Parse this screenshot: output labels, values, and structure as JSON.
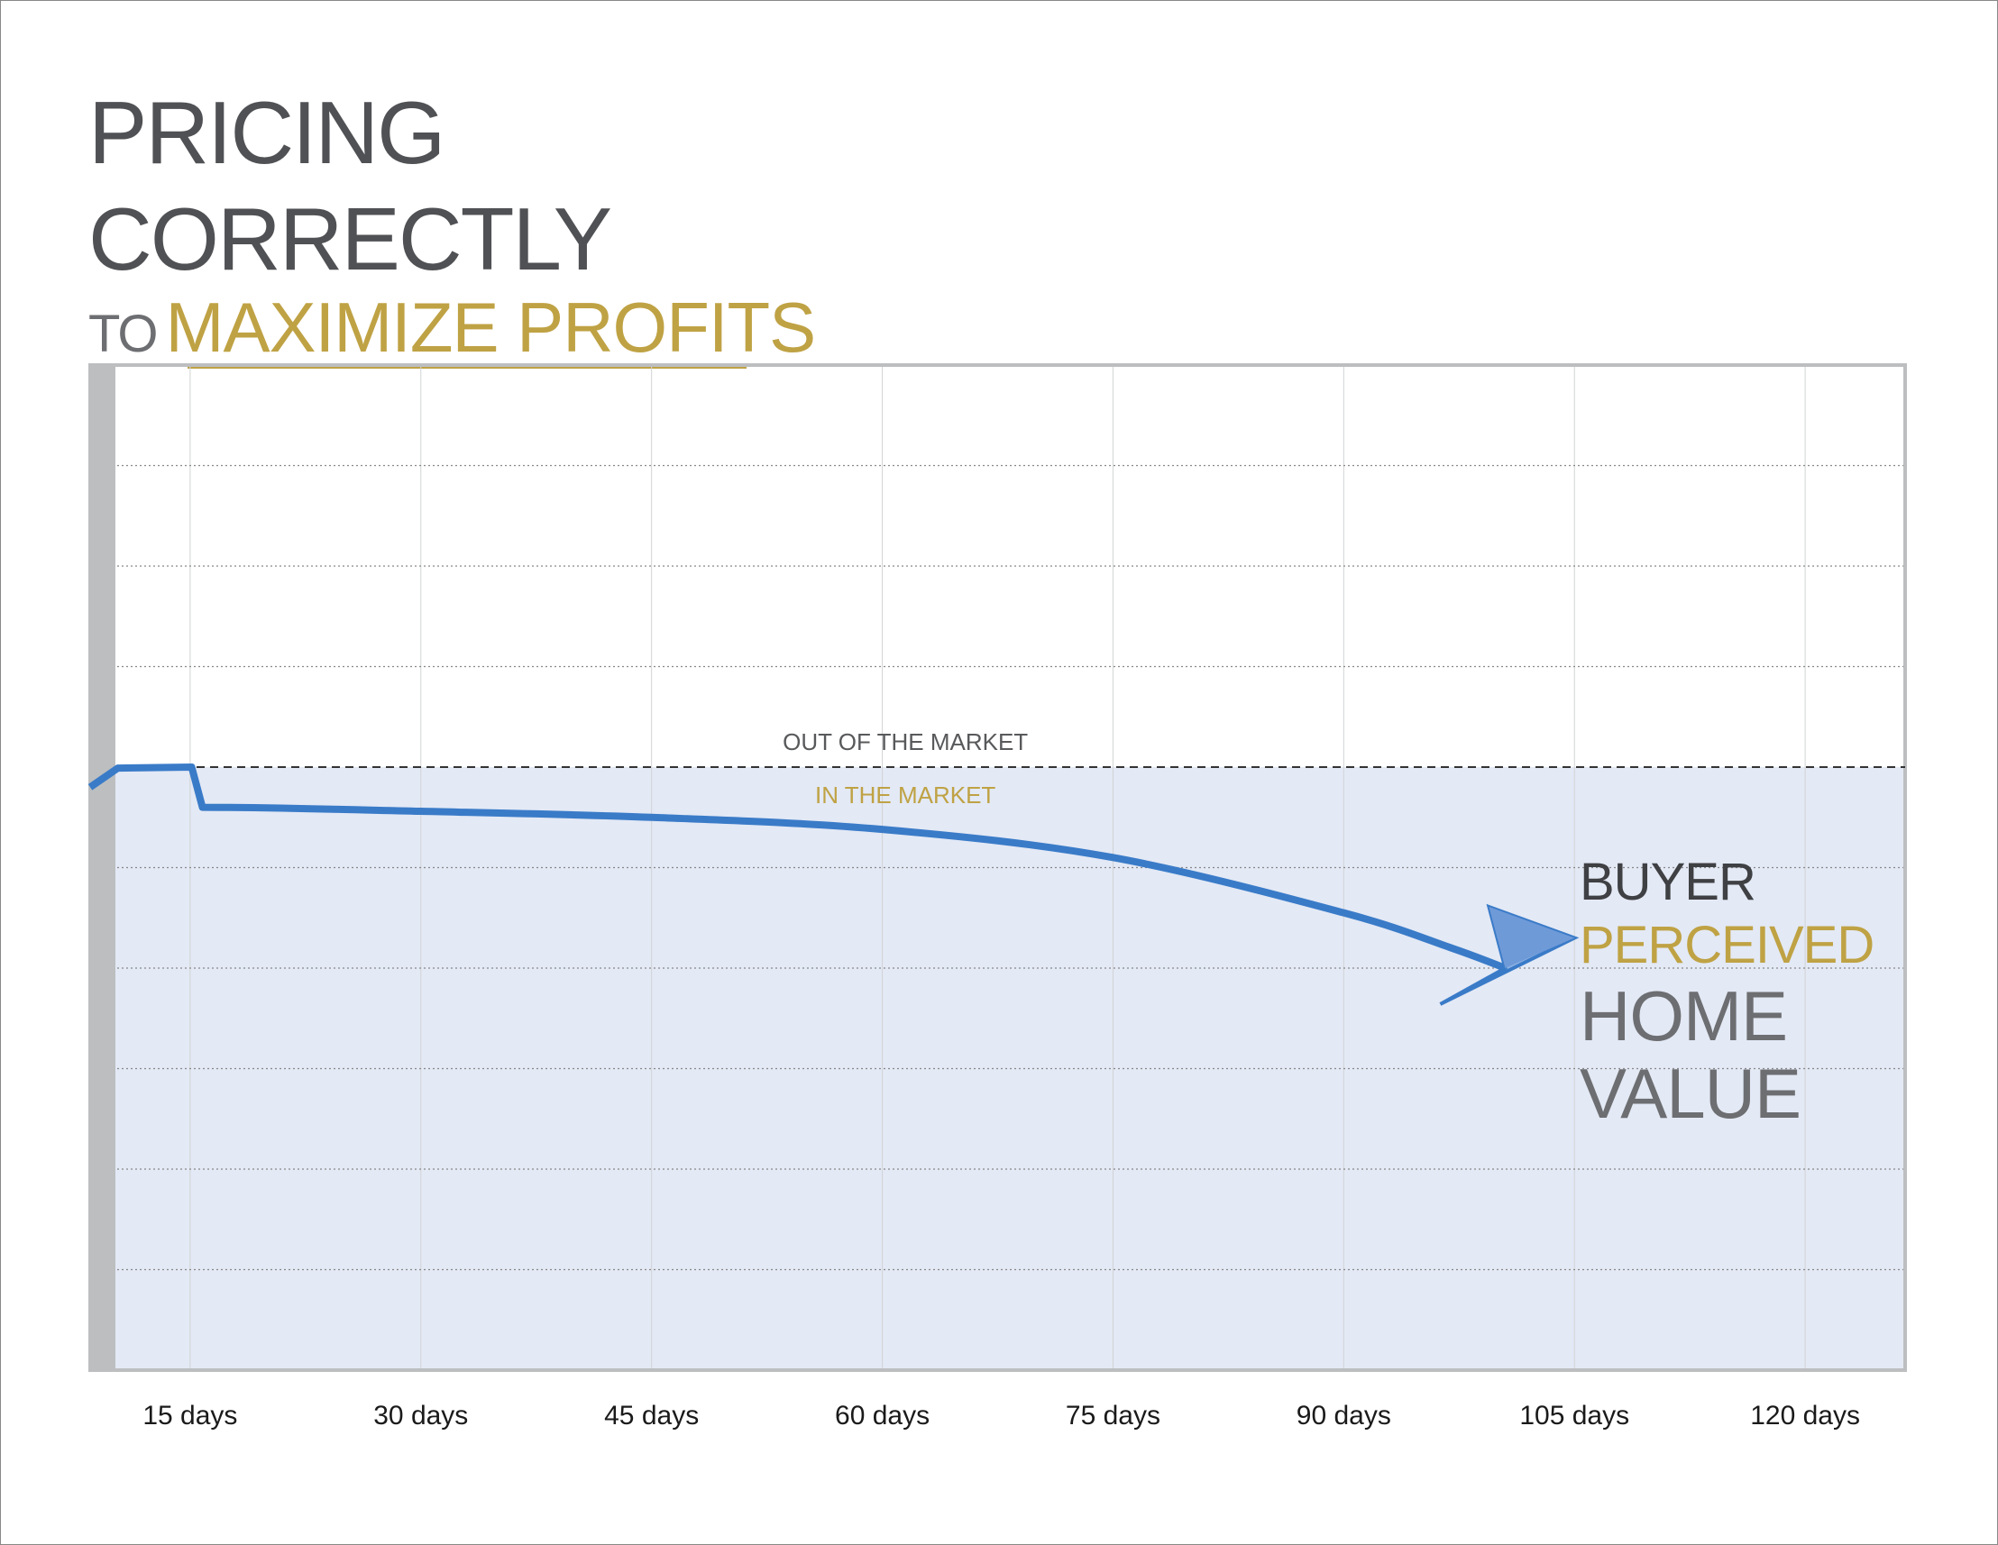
{
  "title": {
    "line1": "PRICING",
    "line2": "CORRECTLY",
    "sub_prefix": "TO",
    "sub_highlight": "MAXIMIZE PROFITS"
  },
  "colors": {
    "title": "#505154",
    "gold": "#bfa244",
    "line": "#3a7bc8",
    "in_market_fill": "#e3e9f5",
    "grid": "#888888",
    "frame": "#bcbec0"
  },
  "annotations": {
    "out_of_market": "OUT OF THE MARKET",
    "in_market": "IN THE MARKET"
  },
  "end_label": {
    "buyer": "BUYER",
    "perceived": "PERCEIVED",
    "home": "HOME",
    "value": "VALUE"
  },
  "chart_data": {
    "type": "line",
    "title": "PRICING CORRECTLY TO MAXIMIZE PROFITS",
    "x_ticks": [
      15,
      30,
      45,
      60,
      75,
      90,
      105,
      120
    ],
    "x_tick_labels": [
      "15 days",
      "30 days",
      "45 days",
      "60 days",
      "75 days",
      "90 days",
      "105 days",
      "120 days"
    ],
    "xlim": [
      8.5,
      126.5
    ],
    "ylim": [
      0,
      10
    ],
    "y_grid_lines": [
      1,
      2,
      3,
      4,
      5,
      6,
      7,
      8,
      9
    ],
    "market_threshold": 6,
    "grid": true,
    "series": [
      {
        "x": [
          8.5,
          10.3,
          15.1,
          15.8,
          30,
          45,
          60,
          75,
          90,
          97,
          100.5
        ],
        "y": [
          5.8,
          5.99,
          6.0,
          5.6,
          5.56,
          5.5,
          5.38,
          5.1,
          4.55,
          4.2,
          4.0
        ]
      }
    ],
    "arrow_tip": {
      "x": 105,
      "y": 4.3
    }
  }
}
